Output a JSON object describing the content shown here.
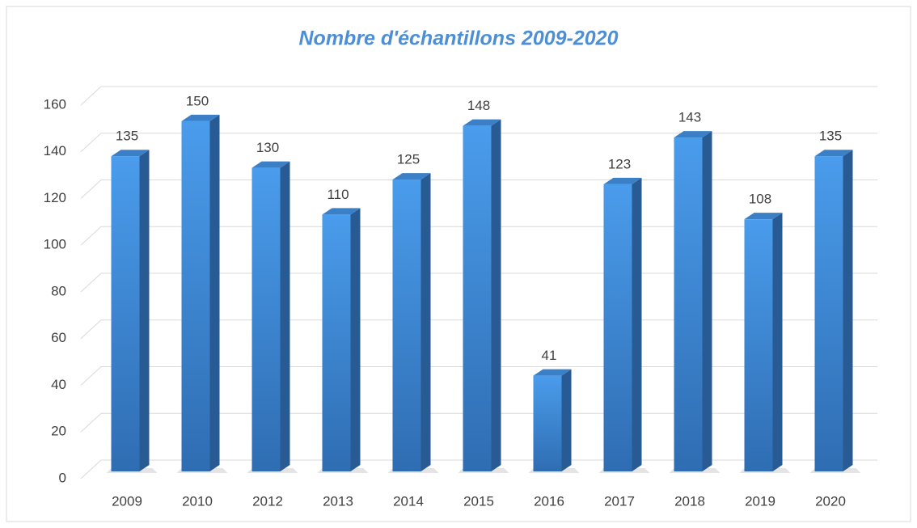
{
  "chart_data": {
    "type": "bar",
    "title": "Nombre d'échantillons 2009-2020",
    "categories": [
      "2009",
      "2010",
      "2012",
      "2013",
      "2014",
      "2015",
      "2016",
      "2017",
      "2018",
      "2019",
      "2020"
    ],
    "values": [
      135,
      150,
      130,
      110,
      125,
      148,
      41,
      123,
      143,
      108,
      135
    ],
    "color": "#3f8fe0",
    "ylim": [
      0,
      160
    ],
    "yticks": [
      0,
      20,
      40,
      60,
      80,
      100,
      120,
      140,
      160
    ],
    "grid": true
  }
}
